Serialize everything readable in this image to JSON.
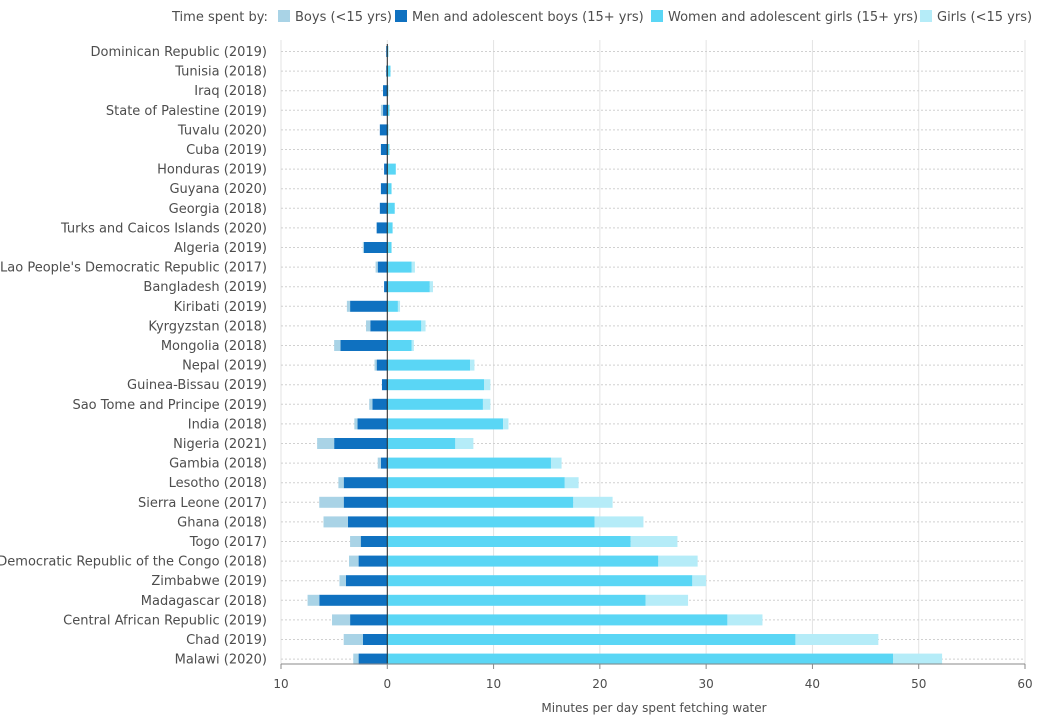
{
  "chart_data": {
    "type": "bar",
    "orientation": "horizontal",
    "stacked": "diverging",
    "legend_title": "Time spent by:",
    "legend_position": "top-right",
    "xlabel": "Minutes per day spent fetching water",
    "xlim": [
      -10,
      60
    ],
    "xticks": [
      -10,
      0,
      10,
      20,
      30,
      40,
      50,
      60
    ],
    "xtick_labels": [
      "10",
      "0",
      "10",
      "20",
      "30",
      "40",
      "50",
      "60"
    ],
    "grid": true,
    "colors": {
      "boys": "#a9d3e6",
      "men": "#0f71c0",
      "women": "#5ad6f5",
      "girls": "#b5ecf8"
    },
    "series": [
      {
        "key": "boys",
        "name": "Boys (<15 yrs)"
      },
      {
        "key": "men",
        "name": "Men and adolescent boys (15+ yrs)"
      },
      {
        "key": "women",
        "name": "Women and adolescent girls (15+ yrs)"
      },
      {
        "key": "girls",
        "name": "Girls (<15 yrs)"
      }
    ],
    "categories": [
      "Dominican Republic (2019)",
      "Tunisia (2018)",
      "Iraq (2018)",
      "State of Palestine (2019)",
      "Tuvalu (2020)",
      "Cuba (2019)",
      "Honduras (2019)",
      "Guyana (2020)",
      "Georgia (2018)",
      "Turks and Caicos Islands (2020)",
      "Algeria (2019)",
      "Lao People's Democratic Republic (2017)",
      "Bangladesh (2019)",
      "Kiribati (2019)",
      "Kyrgyzstan (2018)",
      "Mongolia (2018)",
      "Nepal (2019)",
      "Guinea-Bissau (2019)",
      "Sao Tome and Principe (2019)",
      "India (2018)",
      "Nigeria (2021)",
      "Gambia (2018)",
      "Lesotho (2018)",
      "Sierra Leone (2017)",
      "Ghana (2018)",
      "Togo (2017)",
      "Democratic Republic of the Congo (2018)",
      "Zimbabwe (2019)",
      "Madagascar (2018)",
      "Central African Republic (2019)",
      "Chad (2019)",
      "Malawi (2020)"
    ],
    "values": {
      "boys": [
        0,
        0,
        0,
        0.2,
        0,
        0,
        0,
        0,
        0,
        0,
        0.1,
        0.2,
        0,
        0.3,
        0.4,
        0.6,
        0.2,
        0,
        0.3,
        0.3,
        1.6,
        0.3,
        0.5,
        2.3,
        2.3,
        1.0,
        0.9,
        0.6,
        1.1,
        1.7,
        1.8,
        0.5
      ],
      "men": [
        0.1,
        0.1,
        0.4,
        0.4,
        0.7,
        0.6,
        0.3,
        0.6,
        0.7,
        1.0,
        2.2,
        0.9,
        0.3,
        3.5,
        1.6,
        4.4,
        1.0,
        0.5,
        1.4,
        2.8,
        5.0,
        0.6,
        4.1,
        4.1,
        3.7,
        2.5,
        2.7,
        3.9,
        6.4,
        3.5,
        2.3,
        2.7
      ],
      "women": [
        0.1,
        0.3,
        0.1,
        0.2,
        0.1,
        0.2,
        0.8,
        0.4,
        0.7,
        0.5,
        0.4,
        2.3,
        4.0,
        1.0,
        3.2,
        2.3,
        7.8,
        9.1,
        9.0,
        10.9,
        6.4,
        15.4,
        16.7,
        17.5,
        19.5,
        22.9,
        25.5,
        28.7,
        24.3,
        32.0,
        38.4,
        47.6
      ],
      "girls": [
        0,
        0,
        0,
        0,
        0,
        0,
        0,
        0,
        0,
        0,
        0,
        0.3,
        0.3,
        0.2,
        0.4,
        0.2,
        0.4,
        0.6,
        0.7,
        0.5,
        1.7,
        1.0,
        1.3,
        3.7,
        4.6,
        4.4,
        3.7,
        1.3,
        4.0,
        3.3,
        7.8,
        4.6
      ]
    }
  }
}
